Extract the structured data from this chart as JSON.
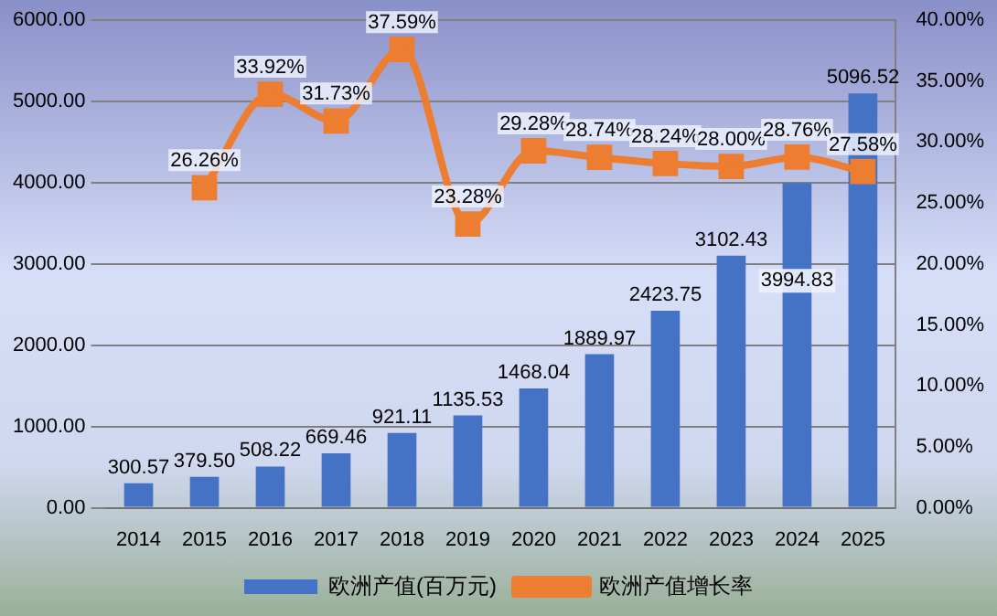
{
  "chart_data": {
    "type": "bar",
    "categories": [
      "2014",
      "2015",
      "2016",
      "2017",
      "2018",
      "2019",
      "2020",
      "2021",
      "2022",
      "2023",
      "2024",
      "2025"
    ],
    "series": [
      {
        "name": "欧洲产值(百万元)",
        "color": "#4472c4",
        "values": [
          300.57,
          379.5,
          508.22,
          669.46,
          921.11,
          1135.53,
          1468.04,
          1889.97,
          2423.75,
          3102.43,
          3994.83,
          5096.52
        ],
        "value_labels": [
          "300.57",
          "379.50",
          "508.22",
          "669.46",
          "921.11",
          "1135.53",
          "1468.04",
          "1889.97",
          "2423.75",
          "3102.43",
          "3994.83",
          "5096.52"
        ]
      },
      {
        "name": "欧洲产值增长率",
        "type": "line",
        "axis": "y2",
        "color": "#ed7d31",
        "marker": "square",
        "values": [
          null,
          26.26,
          33.92,
          31.73,
          37.59,
          23.28,
          29.28,
          28.74,
          28.24,
          28.0,
          28.76,
          27.58
        ],
        "value_labels": [
          null,
          "26.26%",
          "33.92%",
          "31.73%",
          "37.59%",
          "23.28%",
          "29.28%",
          "28.74%",
          "28.24%",
          "28.00%",
          "28.76%",
          "27.58%"
        ]
      }
    ],
    "ylim": [
      0,
      6000
    ],
    "yticks": [
      {
        "value": 0,
        "label": "0.00"
      },
      {
        "value": 1000,
        "label": "1000.00"
      },
      {
        "value": 2000,
        "label": "2000.00"
      },
      {
        "value": 3000,
        "label": "3000.00"
      },
      {
        "value": 4000,
        "label": "4000.00"
      },
      {
        "value": 5000,
        "label": "5000.00"
      },
      {
        "value": 6000,
        "label": "6000.00"
      }
    ],
    "y2lim": [
      0,
      40
    ],
    "y2ticks": [
      {
        "value": 0,
        "label": "0.00%"
      },
      {
        "value": 5,
        "label": "5.00%"
      },
      {
        "value": 10,
        "label": "10.00%"
      },
      {
        "value": 15,
        "label": "15.00%"
      },
      {
        "value": 20,
        "label": "20.00%"
      },
      {
        "value": 25,
        "label": "25.00%"
      },
      {
        "value": 30,
        "label": "30.00%"
      },
      {
        "value": 35,
        "label": "35.00%"
      },
      {
        "value": 40,
        "label": "40.00%"
      }
    ],
    "grid": "y",
    "legend": "bottom"
  }
}
